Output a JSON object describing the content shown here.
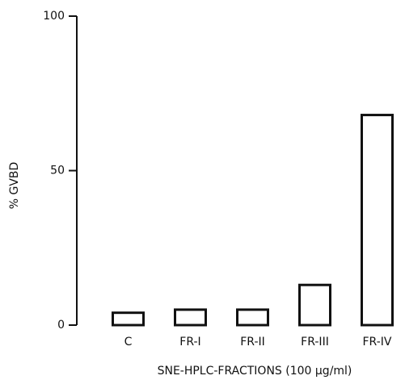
{
  "chart_data": {
    "type": "bar",
    "y_label": "% GVBD",
    "x_label": "SNE-HPLC-FRACTIONS (100 μg/ml)",
    "categories": [
      "C",
      "FR-I",
      "FR-II",
      "FR-III",
      "FR-IV"
    ],
    "values": [
      4,
      5,
      5,
      13,
      68
    ],
    "color": "#111111",
    "ylim": [
      0,
      100
    ],
    "yticks": [
      0,
      50,
      100
    ]
  }
}
